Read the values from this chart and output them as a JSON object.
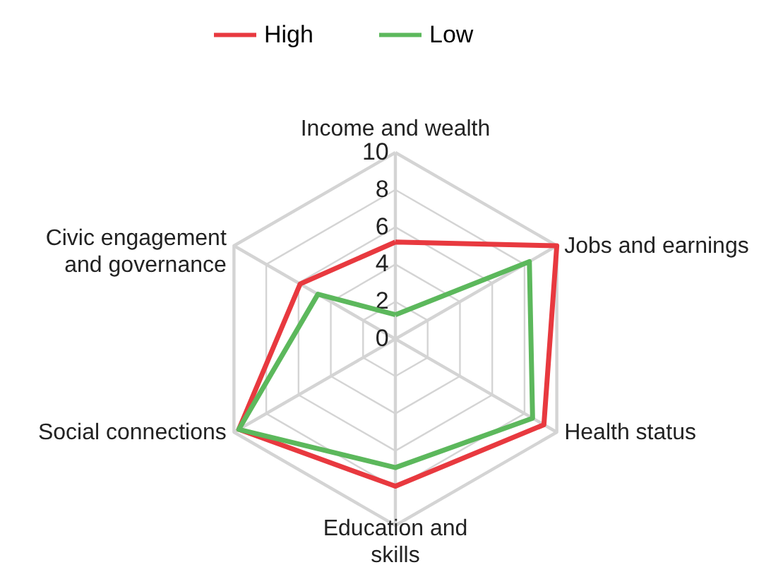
{
  "chart_data": {
    "type": "radar",
    "categories": [
      "Income and wealth",
      "Jobs and earnings",
      "Health status",
      "Education and skills",
      "Social connections",
      "Civic engagement and governance"
    ],
    "series": [
      {
        "name": "High",
        "color": "#e8393f",
        "values": [
          5.2,
          10,
          9.2,
          7.9,
          9.7,
          5.9
        ]
      },
      {
        "name": "Low",
        "color": "#5cb85c",
        "values": [
          1.3,
          8.3,
          8.5,
          6.9,
          9.7,
          4.8
        ]
      }
    ],
    "ylim": [
      0,
      10
    ],
    "yticks": [
      0,
      2,
      4,
      6,
      8,
      10
    ],
    "grid": true,
    "legend": "top"
  }
}
